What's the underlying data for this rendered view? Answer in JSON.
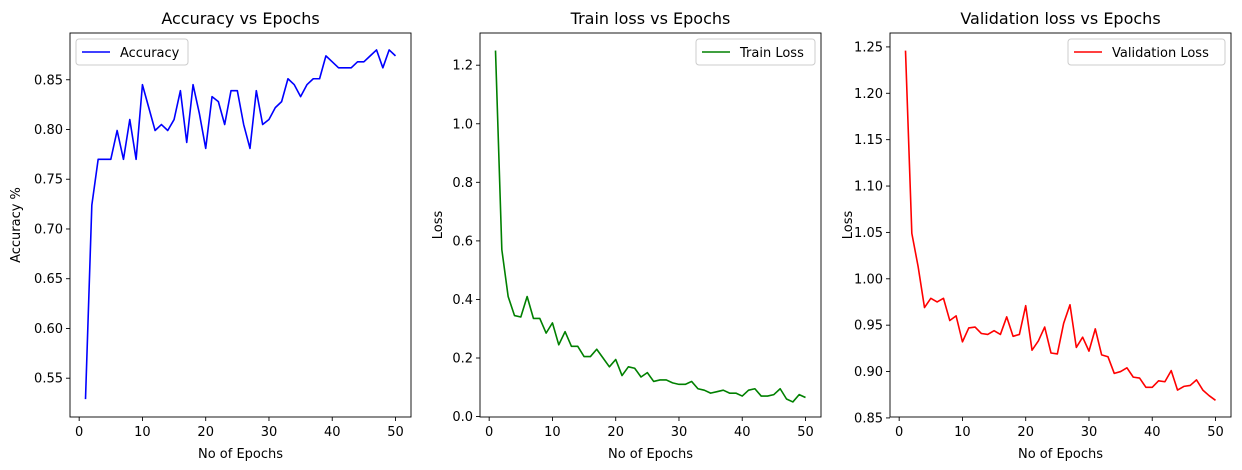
{
  "chart_data": [
    {
      "type": "line",
      "title": "Accuracy vs Epochs",
      "xlabel": "No of Epochs",
      "ylabel": "Accuracy %",
      "xlim": [
        -1.45,
        52.45
      ],
      "ylim": [
        0.511,
        0.897
      ],
      "xticks": [
        0,
        10,
        20,
        30,
        40,
        50
      ],
      "yticks": [
        0.55,
        0.6,
        0.65,
        0.7,
        0.75,
        0.8,
        0.85
      ],
      "ytick_labels": [
        "0.55",
        "0.60",
        "0.65",
        "0.70",
        "0.75",
        "0.80",
        "0.85"
      ],
      "legend_position": "top-left",
      "grid": false,
      "series": [
        {
          "name": "Accuracy",
          "color": "#0000ff",
          "x": [
            1,
            2,
            3,
            4,
            5,
            6,
            7,
            8,
            9,
            10,
            11,
            12,
            13,
            14,
            15,
            16,
            17,
            18,
            19,
            20,
            21,
            22,
            23,
            24,
            25,
            26,
            27,
            28,
            29,
            30,
            31,
            32,
            33,
            34,
            35,
            36,
            37,
            38,
            39,
            40,
            41,
            42,
            43,
            44,
            45,
            46,
            47,
            48,
            49,
            50
          ],
          "values": [
            0.529,
            0.724,
            0.77,
            0.77,
            0.77,
            0.799,
            0.77,
            0.81,
            0.77,
            0.845,
            0.822,
            0.799,
            0.805,
            0.799,
            0.81,
            0.839,
            0.787,
            0.845,
            0.816,
            0.781,
            0.833,
            0.828,
            0.805,
            0.839,
            0.839,
            0.805,
            0.781,
            0.839,
            0.805,
            0.81,
            0.822,
            0.828,
            0.851,
            0.845,
            0.833,
            0.845,
            0.851,
            0.851,
            0.874,
            0.868,
            0.862,
            0.862,
            0.862,
            0.868,
            0.868,
            0.874,
            0.88,
            0.862,
            0.88,
            0.874
          ]
        }
      ]
    },
    {
      "type": "line",
      "title": "Train loss vs Epochs",
      "xlabel": "No of Epochs",
      "ylabel": "Loss",
      "xlim": [
        -1.45,
        52.45
      ],
      "ylim": [
        -0.0015,
        1.31
      ],
      "xticks": [
        0,
        10,
        20,
        30,
        40,
        50
      ],
      "yticks": [
        0.0,
        0.2,
        0.4,
        0.6,
        0.8,
        1.0,
        1.2
      ],
      "ytick_labels": [
        "0.0",
        "0.2",
        "0.4",
        "0.6",
        "0.8",
        "1.0",
        "1.2"
      ],
      "legend_position": "top-right",
      "grid": false,
      "series": [
        {
          "name": "Train Loss",
          "color": "#008000",
          "x": [
            1,
            2,
            3,
            4,
            5,
            6,
            7,
            8,
            9,
            10,
            11,
            12,
            13,
            14,
            15,
            16,
            17,
            18,
            19,
            20,
            21,
            22,
            23,
            24,
            25,
            26,
            27,
            28,
            29,
            30,
            31,
            32,
            33,
            34,
            35,
            36,
            37,
            38,
            39,
            40,
            41,
            42,
            43,
            44,
            45,
            46,
            47,
            48,
            49,
            50
          ],
          "values": [
            1.25,
            0.57,
            0.41,
            0.345,
            0.34,
            0.41,
            0.335,
            0.335,
            0.285,
            0.32,
            0.245,
            0.29,
            0.24,
            0.24,
            0.205,
            0.205,
            0.23,
            0.2,
            0.17,
            0.195,
            0.14,
            0.17,
            0.165,
            0.135,
            0.15,
            0.12,
            0.125,
            0.125,
            0.115,
            0.11,
            0.11,
            0.12,
            0.095,
            0.09,
            0.08,
            0.085,
            0.09,
            0.08,
            0.08,
            0.07,
            0.09,
            0.095,
            0.07,
            0.07,
            0.075,
            0.095,
            0.06,
            0.05,
            0.075,
            0.065
          ]
        }
      ]
    },
    {
      "type": "line",
      "title": "Validation loss vs Epochs",
      "xlabel": "No of Epochs",
      "ylabel": "Loss",
      "xlim": [
        -1.45,
        52.45
      ],
      "ylim": [
        0.851,
        1.265
      ],
      "xticks": [
        0,
        10,
        20,
        30,
        40,
        50
      ],
      "yticks": [
        0.85,
        0.9,
        0.95,
        1.0,
        1.05,
        1.1,
        1.15,
        1.2,
        1.25
      ],
      "ytick_labels": [
        "0.85",
        "0.90",
        "0.95",
        "1.00",
        "1.05",
        "1.10",
        "1.15",
        "1.20",
        "1.25"
      ],
      "legend_position": "top-right",
      "grid": false,
      "series": [
        {
          "name": "Validation Loss",
          "color": "#ff0000",
          "x": [
            1,
            2,
            3,
            4,
            5,
            6,
            7,
            8,
            9,
            10,
            11,
            12,
            13,
            14,
            15,
            16,
            17,
            18,
            19,
            20,
            21,
            22,
            23,
            24,
            25,
            26,
            27,
            28,
            29,
            30,
            31,
            32,
            33,
            34,
            35,
            36,
            37,
            38,
            39,
            40,
            41,
            42,
            43,
            44,
            45,
            46,
            47,
            48,
            49,
            50
          ],
          "values": [
            1.246,
            1.049,
            1.013,
            0.969,
            0.979,
            0.975,
            0.979,
            0.955,
            0.96,
            0.932,
            0.947,
            0.948,
            0.941,
            0.94,
            0.944,
            0.94,
            0.959,
            0.938,
            0.94,
            0.971,
            0.923,
            0.933,
            0.948,
            0.92,
            0.919,
            0.952,
            0.972,
            0.926,
            0.937,
            0.922,
            0.946,
            0.918,
            0.916,
            0.898,
            0.9,
            0.904,
            0.894,
            0.893,
            0.883,
            0.883,
            0.89,
            0.889,
            0.901,
            0.88,
            0.884,
            0.885,
            0.891,
            0.88,
            0.874,
            0.869
          ]
        }
      ]
    }
  ]
}
